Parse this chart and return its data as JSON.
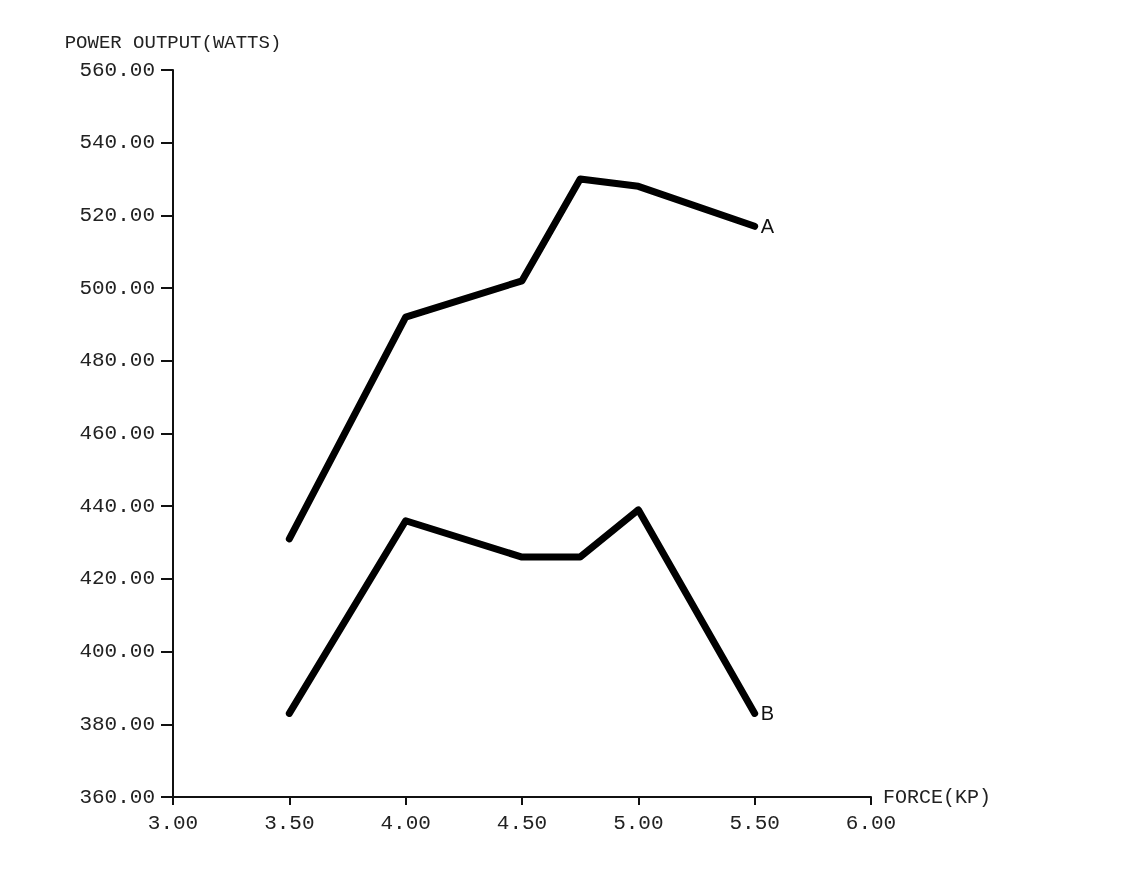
{
  "chart_data": {
    "type": "line",
    "xlabel": "FORCE(KP)",
    "ylabel": "POWER OUTPUT(WATTS)",
    "xlim": [
      3,
      6
    ],
    "xticks": [
      {
        "value": 3,
        "label": "3.00"
      },
      {
        "value": 3.5,
        "label": "3.50"
      },
      {
        "value": 4,
        "label": "4.00"
      },
      {
        "value": 4.5,
        "label": "4.50"
      },
      {
        "value": 5,
        "label": "5.00"
      },
      {
        "value": 5.5,
        "label": "5.50"
      },
      {
        "value": 6,
        "label": "6.00"
      }
    ],
    "ylim": [
      360,
      560
    ],
    "yticks": [
      {
        "value": 360,
        "label": "360.00"
      },
      {
        "value": 380,
        "label": "380.00"
      },
      {
        "value": 400,
        "label": "400.00"
      },
      {
        "value": 420,
        "label": "420.00"
      },
      {
        "value": 440,
        "label": "440.00"
      },
      {
        "value": 460,
        "label": "460.00"
      },
      {
        "value": 480,
        "label": "480.00"
      },
      {
        "value": 500,
        "label": "500.00"
      },
      {
        "value": 520,
        "label": "520.00"
      },
      {
        "value": 540,
        "label": "540.00"
      },
      {
        "value": 560,
        "label": "560.00"
      }
    ],
    "grid": false,
    "legend": false,
    "marker": "none",
    "line_style": "solid",
    "series": [
      {
        "name": "A",
        "color": "#000000",
        "x": [
          3.5,
          4,
          4.5,
          4.75,
          5,
          5.5
        ],
        "values": [
          431,
          492,
          502,
          530,
          528,
          517
        ]
      },
      {
        "name": "B",
        "color": "#000000",
        "x": [
          3.5,
          4,
          4.5,
          4.75,
          5,
          5.5
        ],
        "values": [
          383,
          436,
          426,
          426,
          439,
          383
        ]
      }
    ]
  }
}
